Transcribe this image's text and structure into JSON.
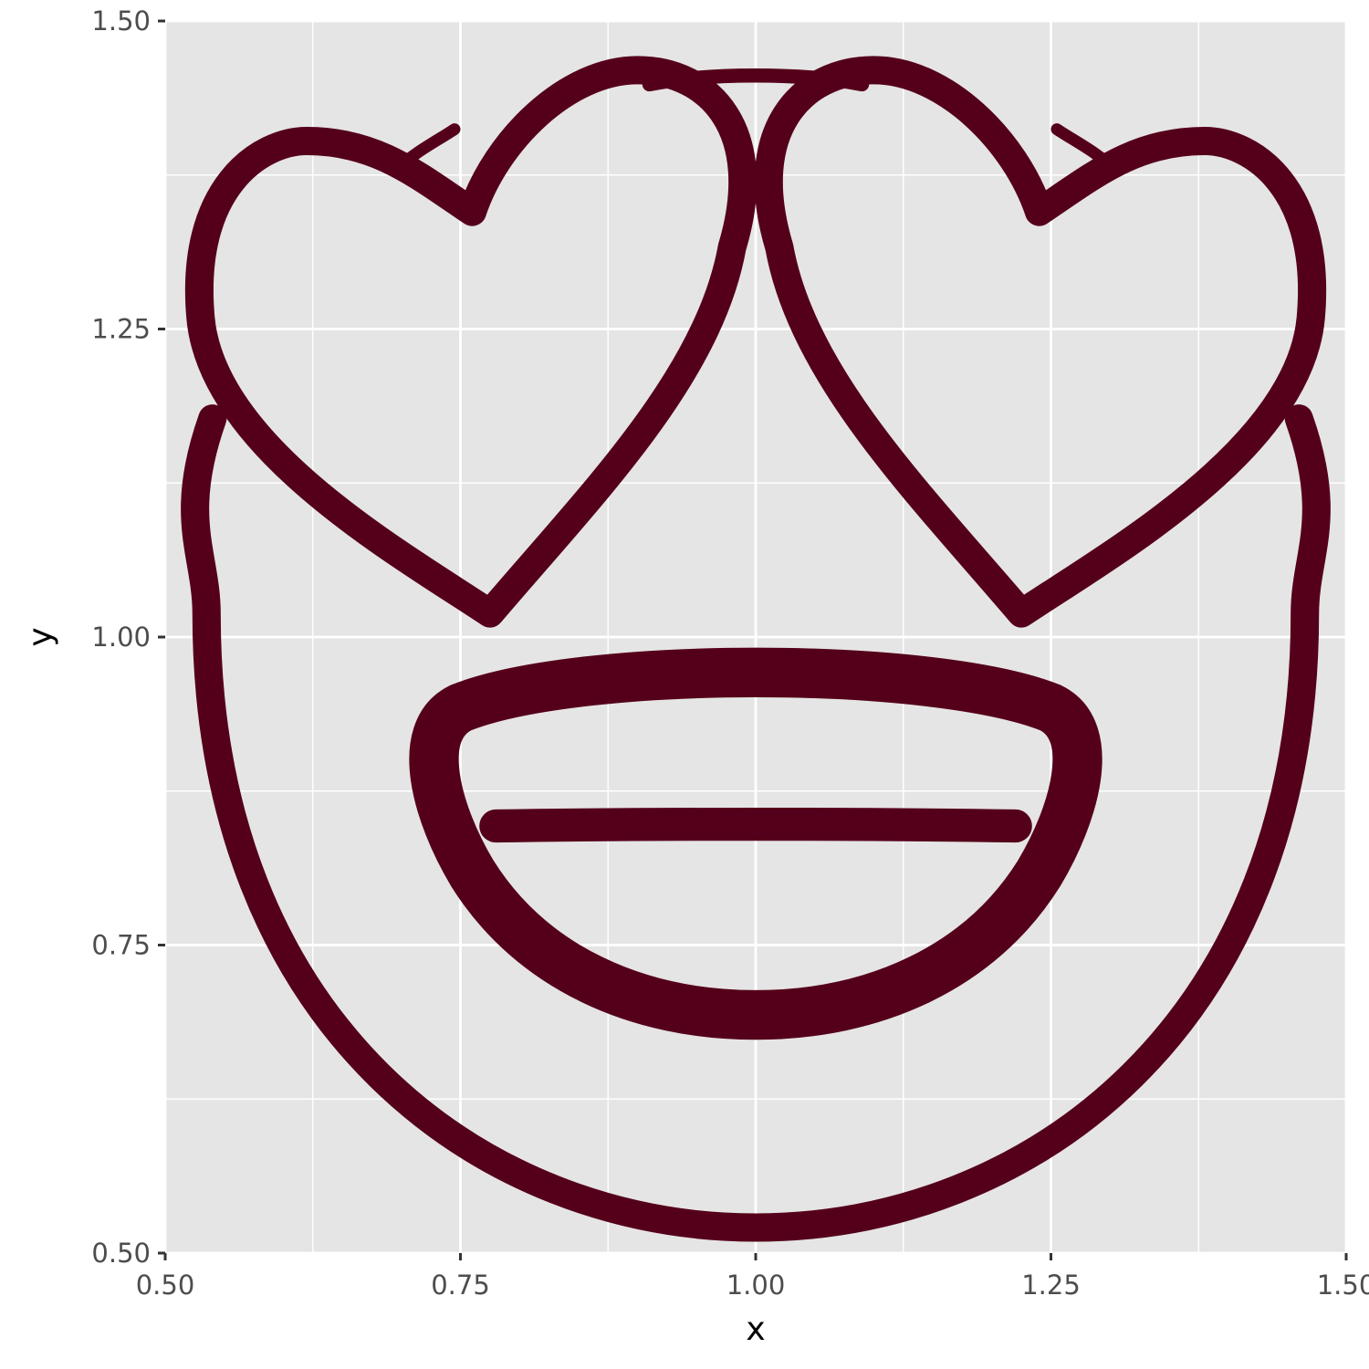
{
  "chart_data": {
    "type": "scatter",
    "title": "",
    "xlabel": "x",
    "ylabel": "y",
    "xlim": [
      0.5,
      1.5
    ],
    "ylim": [
      0.5,
      1.5
    ],
    "x_ticks": [
      {
        "value": 0.5,
        "label": "0.50"
      },
      {
        "value": 0.75,
        "label": "0.75"
      },
      {
        "value": 1.0,
        "label": "1.00"
      },
      {
        "value": 1.25,
        "label": "1.25"
      },
      {
        "value": 1.5,
        "label": "1.50"
      }
    ],
    "y_ticks": [
      {
        "value": 0.5,
        "label": "0.50"
      },
      {
        "value": 0.75,
        "label": "0.75"
      },
      {
        "value": 1.0,
        "label": "1.00"
      },
      {
        "value": 1.25,
        "label": "1.25"
      },
      {
        "value": 1.5,
        "label": "1.50"
      }
    ],
    "grid": true,
    "points": [
      {
        "x": 1.0,
        "y": 1.0,
        "glyph": "heart-eyes-emoji-outline",
        "color": "#55001a"
      }
    ],
    "colors": {
      "panel": "#e5e5e5",
      "grid": "#ffffff",
      "glyph": "#55001a",
      "tick_text": "#4d4d4d",
      "tick_mark": "#333333"
    }
  }
}
